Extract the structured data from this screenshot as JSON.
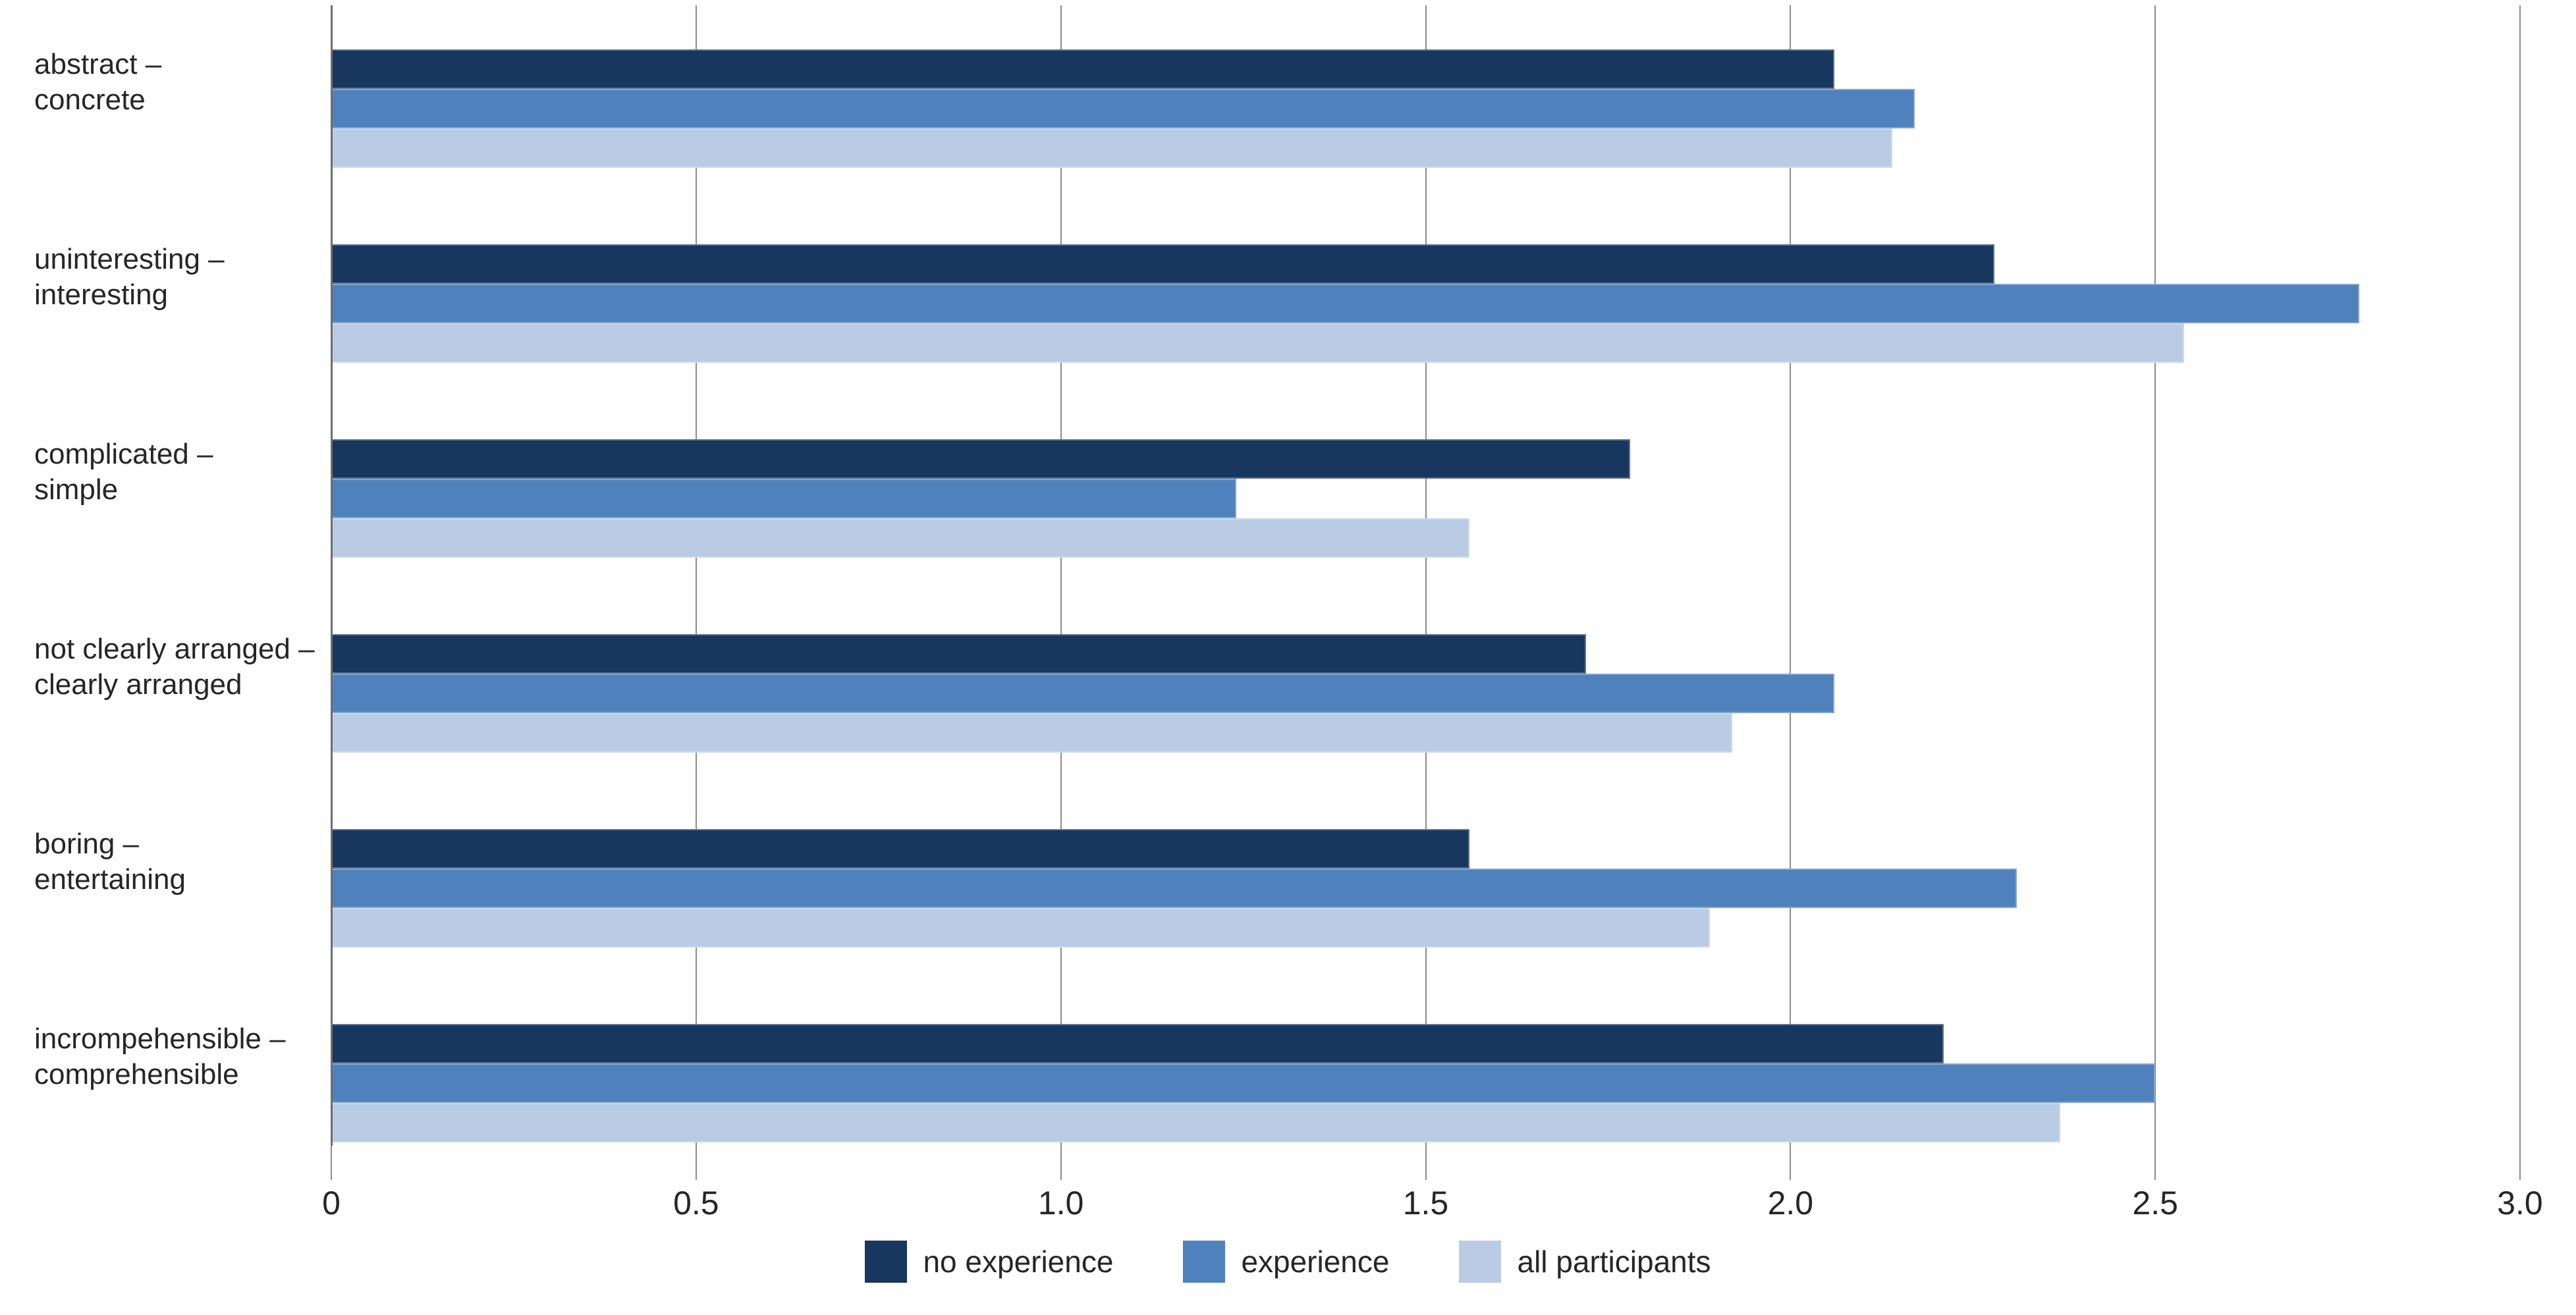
{
  "chart_data": {
    "type": "bar",
    "orientation": "horizontal",
    "title": "",
    "categories": [
      "abstract –\nconcrete",
      "uninteresting –\ninteresting",
      "complicated –\nsimple",
      "not clearly arranged –\nclearly arranged",
      "boring –\nentertaining",
      "incrompehensible –\ncomprehensible"
    ],
    "series": [
      {
        "name": "no experience",
        "color": "#18375F",
        "values": [
          2.06,
          2.28,
          1.78,
          1.72,
          1.56,
          2.21
        ]
      },
      {
        "name": "experience",
        "color": "#4F81BD",
        "values": [
          2.17,
          2.78,
          1.24,
          2.06,
          2.31,
          2.5
        ]
      },
      {
        "name": "all participants",
        "color": "#B9CCE4",
        "values": [
          2.14,
          2.54,
          1.56,
          1.92,
          1.89,
          2.37
        ]
      }
    ],
    "xlim": [
      0,
      3
    ],
    "x_ticks": [
      {
        "v": 0,
        "label": "0"
      },
      {
        "v": 0.5,
        "label": "0.5"
      },
      {
        "v": 1,
        "label": "1.0"
      },
      {
        "v": 1.5,
        "label": "1.5"
      },
      {
        "v": 2,
        "label": "2.0"
      },
      {
        "v": 2.5,
        "label": "2.5"
      },
      {
        "v": 3,
        "label": "3.0"
      }
    ],
    "grid": "vertical-behind-bars",
    "legend_position": "bottom-center",
    "grid_color": "#8C8C8C",
    "axis_color": "#6E6E6E",
    "text_color": "#262626"
  }
}
